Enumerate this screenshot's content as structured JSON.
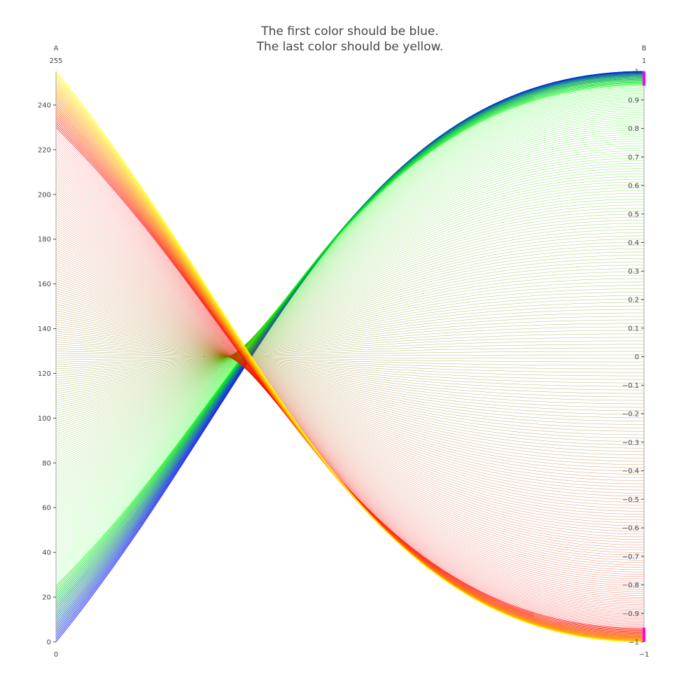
{
  "chart_data": {
    "type": "parcoords",
    "title": [
      "The first color should be blue.",
      "The last color should be yellow."
    ],
    "line_count": 256,
    "colorscale": [
      {
        "stop": 0.0,
        "color": "#0000ff"
      },
      {
        "stop": 0.1,
        "color": "#00ff00"
      },
      {
        "stop": 0.9,
        "color": "#ff0000"
      },
      {
        "stop": 1.0,
        "color": "#ffff00"
      }
    ],
    "color_band_fraction": 0.1,
    "dimensions": [
      {
        "label": "A",
        "range": [
          0,
          255
        ],
        "range_labels": {
          "max": "255",
          "min": "0"
        },
        "ticks": [
          {
            "value": 0,
            "label": "0"
          },
          {
            "value": 20,
            "label": "20"
          },
          {
            "value": 40,
            "label": "40"
          },
          {
            "value": 60,
            "label": "60"
          },
          {
            "value": 80,
            "label": "80"
          },
          {
            "value": 100,
            "label": "100"
          },
          {
            "value": 120,
            "label": "120"
          },
          {
            "value": 140,
            "label": "140"
          },
          {
            "value": 160,
            "label": "160"
          },
          {
            "value": 180,
            "label": "180"
          },
          {
            "value": 200,
            "label": "200"
          },
          {
            "value": 220,
            "label": "220"
          },
          {
            "value": 240,
            "label": "240"
          }
        ],
        "values_rule": "A_i = i for i = 0..255"
      },
      {
        "label": "B",
        "range": [
          -1,
          1
        ],
        "range_labels": {
          "max": "1",
          "min": "−1"
        },
        "ticks": [
          {
            "value": 1,
            "label": "1"
          },
          {
            "value": 0.9,
            "label": "0.9"
          },
          {
            "value": 0.8,
            "label": "0.8"
          },
          {
            "value": 0.7,
            "label": "0.7"
          },
          {
            "value": 0.6,
            "label": "0.6"
          },
          {
            "value": 0.5,
            "label": "0.5"
          },
          {
            "value": 0.4,
            "label": "0.4"
          },
          {
            "value": 0.3,
            "label": "0.3"
          },
          {
            "value": 0.2,
            "label": "0.2"
          },
          {
            "value": 0.1,
            "label": "0.1"
          },
          {
            "value": 0,
            "label": "0"
          },
          {
            "value": -0.1,
            "label": "−0.1"
          },
          {
            "value": -0.2,
            "label": "−0.2"
          },
          {
            "value": -0.3,
            "label": "−0.3"
          },
          {
            "value": -0.4,
            "label": "−0.4"
          },
          {
            "value": -0.5,
            "label": "−0.5"
          },
          {
            "value": -0.6,
            "label": "−0.6"
          },
          {
            "value": -0.7,
            "label": "−0.7"
          },
          {
            "value": -0.8,
            "label": "−0.8"
          },
          {
            "value": -0.9,
            "label": "−0.9"
          },
          {
            "value": -1,
            "label": "−1"
          }
        ],
        "values_rule": "B_i = cos(pi * i / 255) * (-1)^(i) style ordering: first/last bands cross extremes",
        "constraint_ranges": [
          [
            0.95,
            1.0
          ],
          [
            -1.0,
            -0.95
          ]
        ],
        "constraint_color": "#ff00ff"
      }
    ]
  }
}
